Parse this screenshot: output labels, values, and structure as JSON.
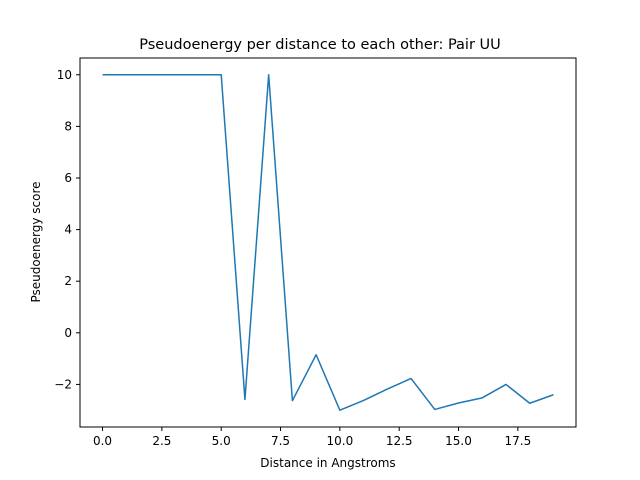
{
  "chart_data": {
    "type": "line",
    "title": "Pseudoenergy per distance to each other: Pair UU",
    "xlabel": "Distance in Angstroms",
    "ylabel": "Pseudoenergy score",
    "xlim": [
      -0.95,
      19.95
    ],
    "ylim": [
      -3.65,
      10.65
    ],
    "grid": false,
    "x_ticks": [
      0.0,
      2.5,
      5.0,
      7.5,
      10.0,
      12.5,
      15.0,
      17.5
    ],
    "x_tick_labels": [
      "0.0",
      "2.5",
      "5.0",
      "7.5",
      "10.0",
      "12.5",
      "15.0",
      "17.5"
    ],
    "y_ticks": [
      -2,
      0,
      2,
      4,
      6,
      8,
      10
    ],
    "y_tick_labels": [
      "−2",
      "0",
      "2",
      "4",
      "6",
      "8",
      "10"
    ],
    "series": [
      {
        "color": "#1f77b4",
        "x": [
          0,
          1,
          2,
          3,
          4,
          5,
          6,
          7,
          8,
          9,
          10,
          11,
          12,
          13,
          14,
          15,
          16,
          17,
          18,
          19
        ],
        "y": [
          10,
          10,
          10,
          10,
          10,
          10,
          -2.58,
          10,
          -2.63,
          -0.85,
          -3.0,
          -2.62,
          -2.18,
          -1.77,
          -2.97,
          -2.72,
          -2.52,
          -2.0,
          -2.73,
          -2.4
        ]
      }
    ]
  }
}
